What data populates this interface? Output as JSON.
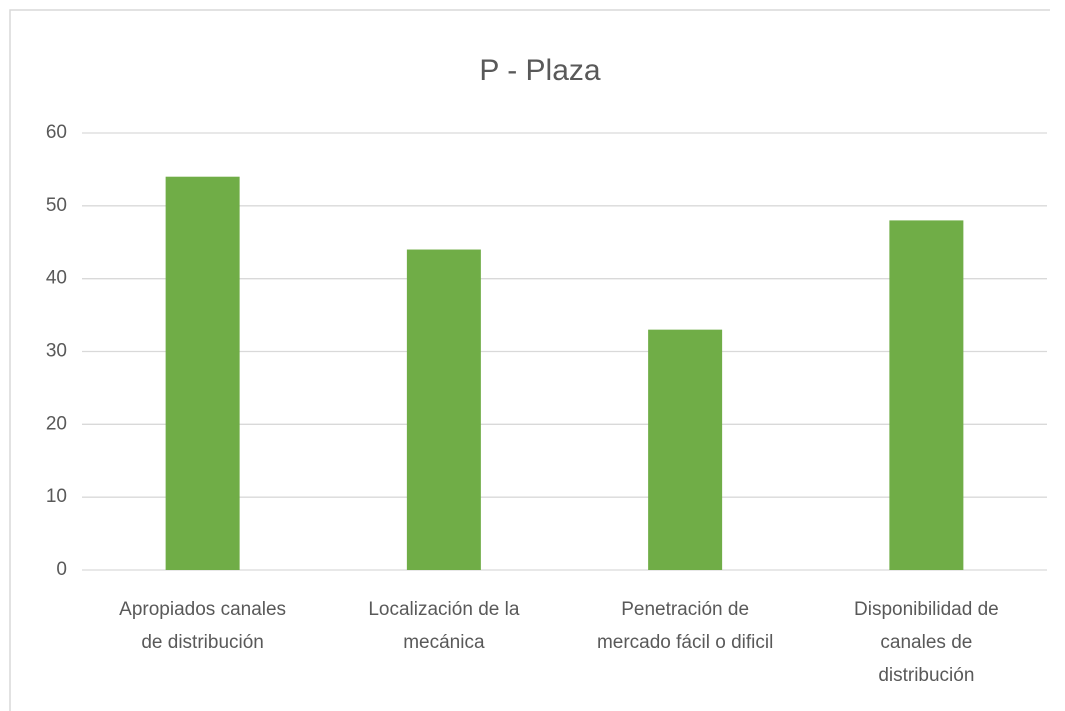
{
  "chart_data": {
    "type": "bar",
    "title": "P - Plaza",
    "categories": [
      "Apropiados canales de distribución",
      "Localización de la mecánica",
      "Penetración de mercado fácil o dificil",
      "Disponibilidad de canales de distribución"
    ],
    "values": [
      54,
      44,
      33,
      48
    ],
    "color": "#70ad47",
    "ylim": [
      0,
      60
    ],
    "yticks": [
      0,
      10,
      20,
      30,
      40,
      50,
      60
    ],
    "grid": true
  }
}
